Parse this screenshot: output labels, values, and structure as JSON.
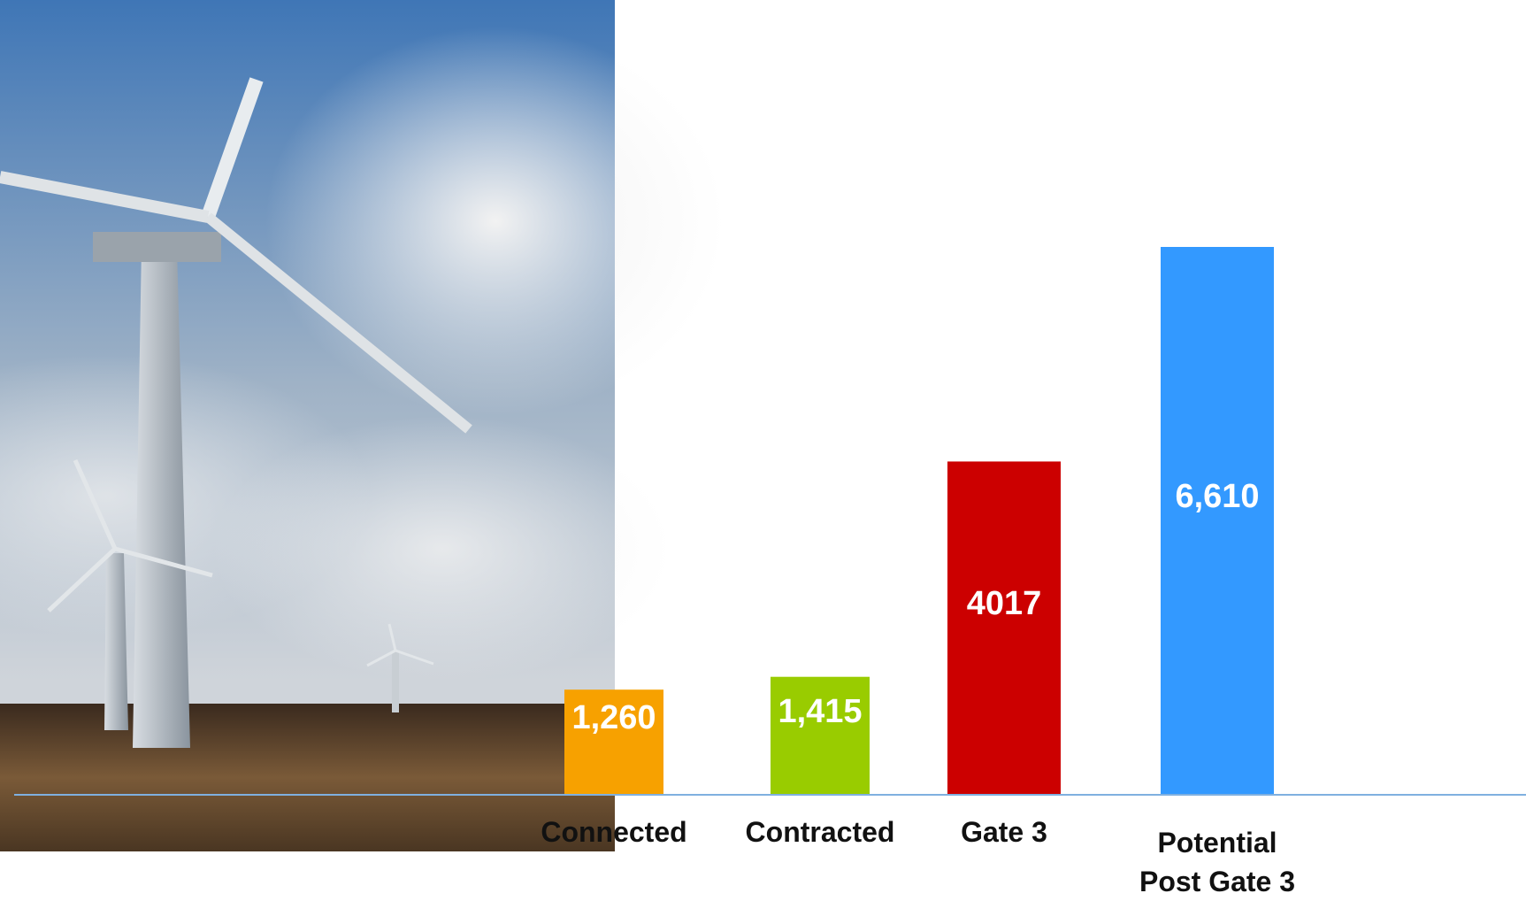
{
  "chart_data": {
    "type": "bar",
    "categories": [
      "Connected",
      "Contracted",
      "Gate 3",
      "Potential Post Gate 3"
    ],
    "values": [
      1260,
      1415,
      4017,
      6610
    ],
    "value_labels": [
      "1,260",
      "1,415",
      "4017",
      "6,610"
    ],
    "colors": [
      "#f7a100",
      "#99cc00",
      "#cc0000",
      "#3399ff"
    ]
  }
}
